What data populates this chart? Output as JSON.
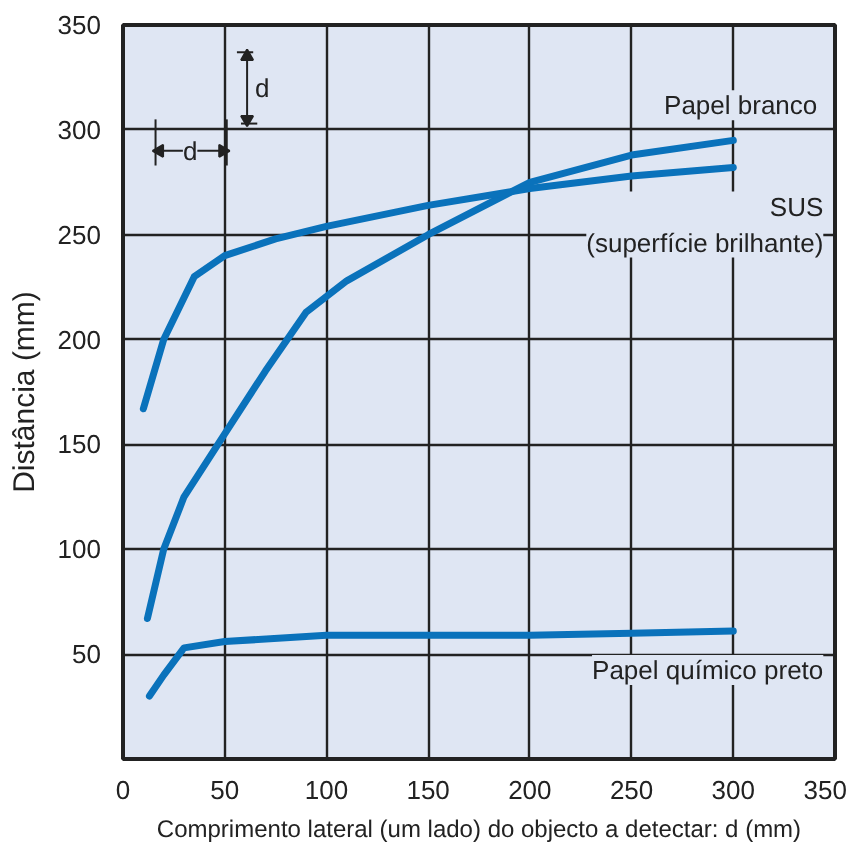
{
  "chart_data": {
    "type": "line",
    "xlabel": "Comprimento lateral (um lado) do objecto a detectar: d (mm)",
    "ylabel": "Distância (mm)",
    "xlim": [
      0,
      350
    ],
    "ylim": [
      0,
      350
    ],
    "xticks": [
      {
        "value": 0,
        "label": "0"
      },
      50,
      100,
      150,
      200,
      250,
      300,
      350
    ],
    "yticks": [
      {
        "value": 0,
        "label": null
      },
      50,
      100,
      150,
      200,
      250,
      300,
      350
    ],
    "grid": true,
    "marker": "none",
    "line_style": "solid",
    "series": [
      {
        "name": "Papel branco",
        "color": "#0a72bb",
        "x": [
          12,
          20,
          30,
          50,
          70,
          90,
          110,
          150,
          200,
          250,
          300
        ],
        "values": [
          67,
          100,
          125,
          155,
          185,
          213,
          228,
          250,
          275,
          288,
          295
        ]
      },
      {
        "name": "SUS\n(superfície brilhante)",
        "color": "#0a72bb",
        "x": [
          10,
          20,
          35,
          50,
          75,
          100,
          150,
          200,
          250,
          300
        ],
        "values": [
          167,
          200,
          230,
          240,
          248,
          254,
          264,
          272,
          278,
          282
        ]
      },
      {
        "name": "Papel químico preto",
        "color": "#0a72bb",
        "x": [
          13,
          20,
          30,
          50,
          100,
          150,
          200,
          250,
          300
        ],
        "values": [
          30,
          40,
          53,
          56,
          59,
          59,
          59,
          60,
          61
        ]
      }
    ],
    "annotations": [
      "d",
      "d"
    ]
  }
}
